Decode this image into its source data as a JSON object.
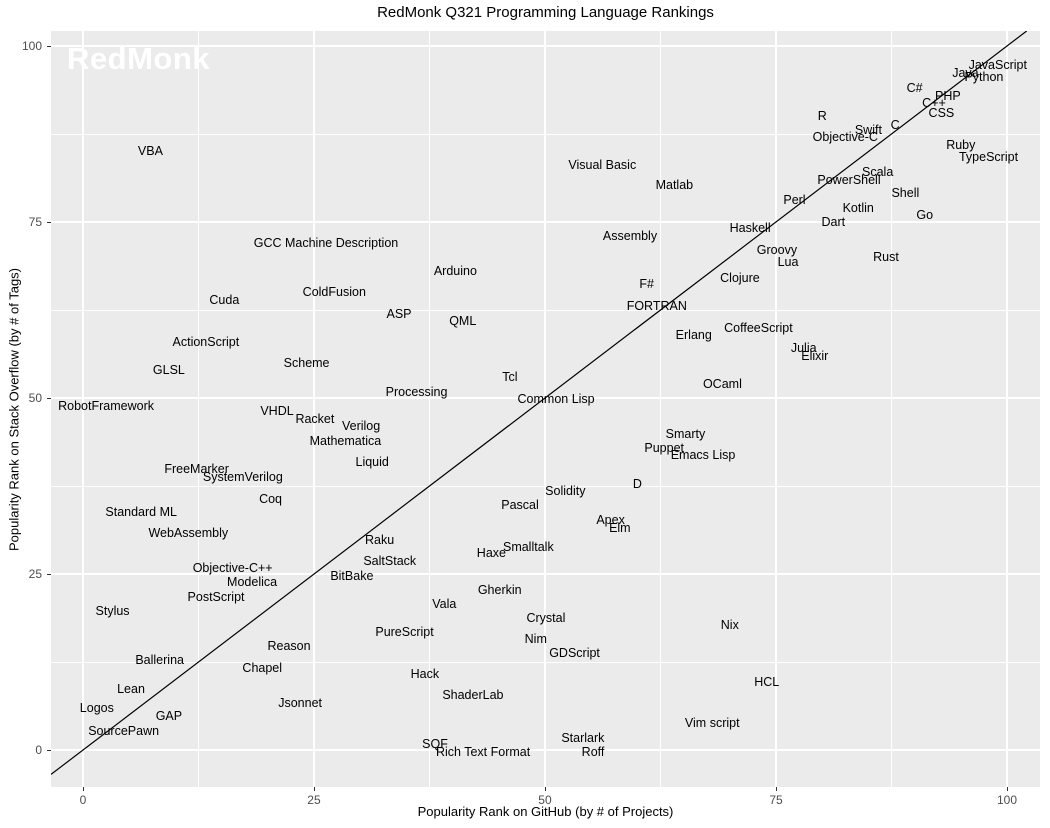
{
  "title": "RedMonk Q321 Programming Language Rankings",
  "watermark": "RedMonk",
  "colors": {
    "panel_background": "#EBEBEB",
    "gridline": "#FFFFFF",
    "label_text": "#000000",
    "tick_text": "#4D4D4D",
    "reference_line": "#000000",
    "watermark_text": "#FFFFFF"
  },
  "chart_data": {
    "type": "scatter",
    "title": "RedMonk Q321 Programming Language Rankings",
    "xlabel": "Popularity Rank on GitHub (by # of Projects)",
    "ylabel": "Popularity Rank on Stack Overflow (by # of Tags)",
    "xlim": [
      -3.46,
      103.57
    ],
    "ylim": [
      -5.25,
      102.13
    ],
    "xticks": [
      0,
      25,
      50,
      75,
      100
    ],
    "yticks": [
      0,
      25,
      50,
      75,
      100
    ],
    "minor_ticks": [
      12.5,
      37.5,
      62.5,
      87.5
    ],
    "grid": "major+minor white on gray panel",
    "legend": "none",
    "reference_line": {
      "type": "identity",
      "description": "diagonal y = x line"
    },
    "points": [
      {
        "label": "JavaScript",
        "x": 99.0,
        "y": 97.3
      },
      {
        "label": "Java",
        "x": 95.5,
        "y": 96.1
      },
      {
        "label": "Python",
        "x": 97.5,
        "y": 95.6
      },
      {
        "label": "C#",
        "x": 90.0,
        "y": 94.0
      },
      {
        "label": "PHP",
        "x": 93.6,
        "y": 92.9
      },
      {
        "label": "C++",
        "x": 92.1,
        "y": 91.9
      },
      {
        "label": "CSS",
        "x": 92.9,
        "y": 90.5
      },
      {
        "label": "Ruby",
        "x": 95.0,
        "y": 86.0
      },
      {
        "label": "TypeScript",
        "x": 98.0,
        "y": 84.2
      },
      {
        "label": "R",
        "x": 80.0,
        "y": 90.0
      },
      {
        "label": "Objective-C",
        "x": 82.5,
        "y": 87.1
      },
      {
        "label": "Swift",
        "x": 85.0,
        "y": 88.0
      },
      {
        "label": "C",
        "x": 87.9,
        "y": 88.8
      },
      {
        "label": "Scala",
        "x": 86.0,
        "y": 82.1
      },
      {
        "label": "PowerShell",
        "x": 82.9,
        "y": 81.0
      },
      {
        "label": "Perl",
        "x": 77.0,
        "y": 78.1
      },
      {
        "label": "Shell",
        "x": 89.0,
        "y": 79.1
      },
      {
        "label": "Kotlin",
        "x": 83.9,
        "y": 77.0
      },
      {
        "label": "Go",
        "x": 91.1,
        "y": 76.0
      },
      {
        "label": "Dart",
        "x": 81.2,
        "y": 75.0
      },
      {
        "label": "Haskell",
        "x": 72.2,
        "y": 74.1
      },
      {
        "label": "Groovy",
        "x": 75.1,
        "y": 71.0
      },
      {
        "label": "Lua",
        "x": 76.3,
        "y": 69.3
      },
      {
        "label": "Rust",
        "x": 86.9,
        "y": 70.0
      },
      {
        "label": "Visual Basic",
        "x": 56.2,
        "y": 83.1
      },
      {
        "label": "Matlab",
        "x": 64.0,
        "y": 80.2
      },
      {
        "label": "Assembly",
        "x": 59.2,
        "y": 73.0
      },
      {
        "label": "Clojure",
        "x": 71.1,
        "y": 67.0
      },
      {
        "label": "F#",
        "x": 61.0,
        "y": 66.2
      },
      {
        "label": "FORTRAN",
        "x": 62.1,
        "y": 63.1
      },
      {
        "label": "Erlang",
        "x": 66.1,
        "y": 59.0
      },
      {
        "label": "CoffeeScript",
        "x": 73.1,
        "y": 59.9
      },
      {
        "label": "Julia",
        "x": 78.0,
        "y": 57.1
      },
      {
        "label": "Elixir",
        "x": 79.2,
        "y": 56.0
      },
      {
        "label": "OCaml",
        "x": 69.2,
        "y": 52.0
      },
      {
        "label": "Smarty",
        "x": 65.2,
        "y": 44.9
      },
      {
        "label": "Puppet",
        "x": 62.9,
        "y": 42.9
      },
      {
        "label": "Emacs Lisp",
        "x": 67.1,
        "y": 41.9
      },
      {
        "label": "D",
        "x": 60.0,
        "y": 37.8
      },
      {
        "label": "VBA",
        "x": 7.3,
        "y": 85.1
      },
      {
        "label": "GCC Machine Description",
        "x": 26.3,
        "y": 72.0
      },
      {
        "label": "Arduino",
        "x": 40.3,
        "y": 68.0
      },
      {
        "label": "ColdFusion",
        "x": 27.2,
        "y": 65.1
      },
      {
        "label": "Cuda",
        "x": 15.3,
        "y": 63.9
      },
      {
        "label": "ASP",
        "x": 34.2,
        "y": 61.9
      },
      {
        "label": "QML",
        "x": 41.1,
        "y": 60.9
      },
      {
        "label": "ActionScript",
        "x": 13.3,
        "y": 58.0
      },
      {
        "label": "Scheme",
        "x": 24.2,
        "y": 55.0
      },
      {
        "label": "GLSL",
        "x": 9.3,
        "y": 54.0
      },
      {
        "label": "Processing",
        "x": 36.1,
        "y": 50.9
      },
      {
        "label": "RobotFramework",
        "x": 2.5,
        "y": 48.9
      },
      {
        "label": "VHDL",
        "x": 21.0,
        "y": 48.2
      },
      {
        "label": "Racket",
        "x": 25.1,
        "y": 47.0
      },
      {
        "label": "Verilog",
        "x": 30.1,
        "y": 46.0
      },
      {
        "label": "Mathematica",
        "x": 28.4,
        "y": 43.9
      },
      {
        "label": "Liquid",
        "x": 31.3,
        "y": 40.9
      },
      {
        "label": "Tcl",
        "x": 46.2,
        "y": 53.0
      },
      {
        "label": "Common Lisp",
        "x": 51.2,
        "y": 49.9
      },
      {
        "label": "FreeMarker",
        "x": 12.3,
        "y": 39.9
      },
      {
        "label": "SystemVerilog",
        "x": 17.3,
        "y": 38.8
      },
      {
        "label": "Coq",
        "x": 20.3,
        "y": 35.7
      },
      {
        "label": "Standard ML",
        "x": 6.3,
        "y": 33.8
      },
      {
        "label": "WebAssembly",
        "x": 11.4,
        "y": 30.8
      },
      {
        "label": "Solidity",
        "x": 52.2,
        "y": 36.8
      },
      {
        "label": "Pascal",
        "x": 47.3,
        "y": 34.8
      },
      {
        "label": "Apex",
        "x": 57.1,
        "y": 32.7
      },
      {
        "label": "Elm",
        "x": 58.1,
        "y": 31.5
      },
      {
        "label": "Smalltalk",
        "x": 48.2,
        "y": 28.8
      },
      {
        "label": "Haxe",
        "x": 44.2,
        "y": 28.0
      },
      {
        "label": "Raku",
        "x": 32.1,
        "y": 29.8
      },
      {
        "label": "SaltStack",
        "x": 33.2,
        "y": 26.8
      },
      {
        "label": "Objective-C++",
        "x": 16.2,
        "y": 25.9
      },
      {
        "label": "BitBake",
        "x": 29.1,
        "y": 24.7
      },
      {
        "label": "Modelica",
        "x": 18.3,
        "y": 23.9
      },
      {
        "label": "PostScript",
        "x": 14.4,
        "y": 21.7
      },
      {
        "label": "Stylus",
        "x": 3.2,
        "y": 19.7
      },
      {
        "label": "Gherkin",
        "x": 45.1,
        "y": 22.7
      },
      {
        "label": "Vala",
        "x": 39.1,
        "y": 20.7
      },
      {
        "label": "PureScript",
        "x": 34.8,
        "y": 16.8
      },
      {
        "label": "Crystal",
        "x": 50.1,
        "y": 18.8
      },
      {
        "label": "Nim",
        "x": 49.0,
        "y": 15.8
      },
      {
        "label": "GDScript",
        "x": 53.2,
        "y": 13.8
      },
      {
        "label": "Nix",
        "x": 70.0,
        "y": 17.8
      },
      {
        "label": "HCL",
        "x": 74.0,
        "y": 9.7
      },
      {
        "label": "Vim script",
        "x": 68.1,
        "y": 3.8
      },
      {
        "label": "Reason",
        "x": 22.3,
        "y": 14.8
      },
      {
        "label": "Chapel",
        "x": 19.4,
        "y": 11.6
      },
      {
        "label": "Ballerina",
        "x": 8.3,
        "y": 12.8
      },
      {
        "label": "Lean",
        "x": 5.2,
        "y": 8.7
      },
      {
        "label": "Logos",
        "x": 1.5,
        "y": 6.0
      },
      {
        "label": "GAP",
        "x": 9.3,
        "y": 4.8
      },
      {
        "label": "SourcePawn",
        "x": 4.4,
        "y": 2.7
      },
      {
        "label": "Jsonnet",
        "x": 23.5,
        "y": 6.7
      },
      {
        "label": "Hack",
        "x": 37.0,
        "y": 10.8
      },
      {
        "label": "ShaderLab",
        "x": 42.2,
        "y": 7.8
      },
      {
        "label": "SQF",
        "x": 38.1,
        "y": 0.9
      },
      {
        "label": "Rich Text Format",
        "x": 43.3,
        "y": -0.3
      },
      {
        "label": "Starlark",
        "x": 54.1,
        "y": 1.7
      },
      {
        "label": "Roff",
        "x": 55.2,
        "y": -0.3
      }
    ]
  }
}
